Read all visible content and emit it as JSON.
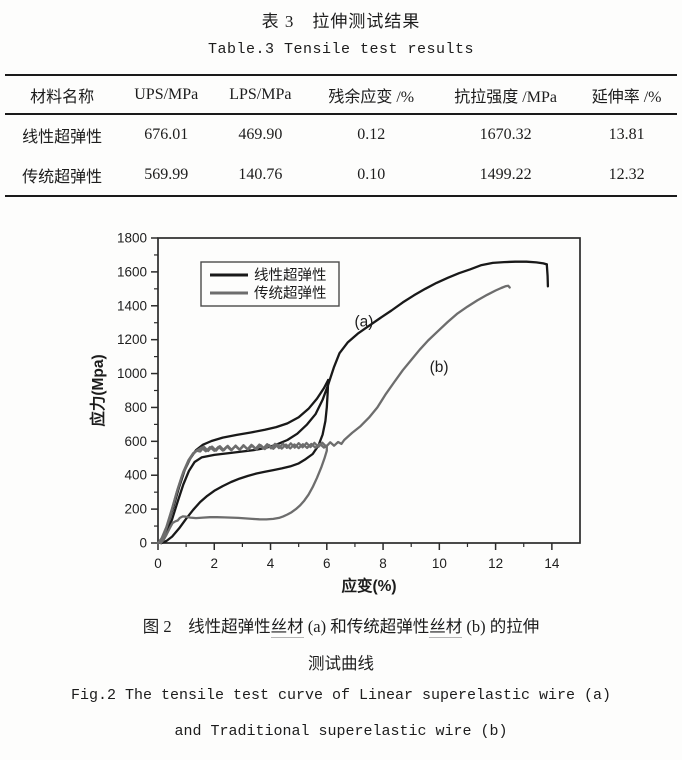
{
  "table_section": {
    "title_zh": "表 3　拉伸测试结果",
    "title_en": "Table.3  Tensile test results",
    "columns": [
      "材料名称",
      "UPS/MPa",
      "LPS/MPa",
      "残余应变 /%",
      "抗拉强度 /MPa",
      "延伸率 /%"
    ],
    "rows": [
      [
        "线性超弹性",
        "676.01",
        "469.90",
        "0.12",
        "1670.32",
        "13.81"
      ],
      [
        "传统超弹性",
        "569.99",
        "140.76",
        "0.10",
        "1499.22",
        "12.32"
      ]
    ]
  },
  "chart_data": {
    "type": "line",
    "title": "",
    "xlabel": "应变(%)",
    "ylabel": "应力(Mpa)",
    "xlim": [
      0,
      15
    ],
    "ylim": [
      0,
      1800
    ],
    "x_ticks": [
      0,
      2,
      4,
      6,
      8,
      10,
      12,
      14
    ],
    "y_ticks": [
      0,
      200,
      400,
      600,
      800,
      1000,
      1200,
      1400,
      1600,
      1800
    ],
    "x_minor": [
      1,
      3,
      5,
      7,
      9,
      11,
      13
    ],
    "y_minor": [
      100,
      300,
      500,
      700,
      900,
      1100,
      1300,
      1500,
      1700
    ],
    "grid": false,
    "legend_position": "upper-left",
    "axis_color": "#2b2b2b",
    "annotations": [
      {
        "text": "(a)",
        "x": 7.32,
        "y": 1307
      },
      {
        "text": "(b)",
        "x": 9.99,
        "y": 1040
      }
    ],
    "series": [
      {
        "name": "线性超弹性",
        "color": "#191919",
        "width": 2.3,
        "segments": [
          [
            [
              0,
              0
            ],
            [
              0.15,
              30
            ],
            [
              0.35,
              110
            ],
            [
              0.55,
              215
            ],
            [
              0.75,
              330
            ],
            [
              0.95,
              430
            ],
            [
              1.15,
              500
            ],
            [
              1.35,
              548
            ],
            [
              1.6,
              580
            ],
            [
              1.9,
              602
            ],
            [
              2.3,
              622
            ],
            [
              2.8,
              638
            ],
            [
              3.3,
              652
            ],
            [
              3.8,
              668
            ],
            [
              4.2,
              684
            ],
            [
              4.6,
              706
            ],
            [
              5.0,
              742
            ],
            [
              5.35,
              792
            ],
            [
              5.65,
              852
            ],
            [
              5.9,
              915
            ],
            [
              6.05,
              962
            ]
          ],
          [
            [
              6.05,
              962
            ],
            [
              6.03,
              880
            ],
            [
              6.0,
              800
            ],
            [
              5.95,
              720
            ],
            [
              5.85,
              640
            ],
            [
              5.7,
              575
            ],
            [
              5.5,
              525
            ],
            [
              5.25,
              495
            ],
            [
              5.0,
              470
            ],
            [
              4.7,
              452
            ],
            [
              4.4,
              440
            ],
            [
              4.1,
              430
            ],
            [
              3.8,
              420
            ],
            [
              3.5,
              410
            ],
            [
              3.2,
              396
            ],
            [
              2.9,
              380
            ],
            [
              2.6,
              360
            ],
            [
              2.3,
              336
            ],
            [
              2.0,
              308
            ],
            [
              1.75,
              278
            ],
            [
              1.5,
              242
            ],
            [
              1.25,
              196
            ],
            [
              1.0,
              143
            ],
            [
              0.75,
              86
            ],
            [
              0.5,
              38
            ],
            [
              0.3,
              12
            ],
            [
              0.12,
              0
            ]
          ],
          [
            [
              0.12,
              0
            ],
            [
              0.3,
              55
            ],
            [
              0.5,
              140
            ],
            [
              0.7,
              245
            ],
            [
              0.9,
              345
            ],
            [
              1.1,
              425
            ],
            [
              1.3,
              478
            ],
            [
              1.55,
              505
            ],
            [
              2.0,
              520
            ],
            [
              2.6,
              532
            ],
            [
              3.0,
              540
            ],
            [
              3.4,
              548
            ],
            [
              3.8,
              560
            ],
            [
              4.2,
              580
            ],
            [
              4.6,
              608
            ],
            [
              4.95,
              645
            ],
            [
              5.3,
              700
            ],
            [
              5.6,
              760
            ],
            [
              5.85,
              845
            ],
            [
              6.05,
              935
            ],
            [
              6.25,
              1035
            ],
            [
              6.45,
              1120
            ],
            [
              6.75,
              1185
            ],
            [
              7.1,
              1235
            ],
            [
              7.5,
              1282
            ],
            [
              7.9,
              1328
            ],
            [
              8.3,
              1372
            ],
            [
              8.7,
              1420
            ],
            [
              9.1,
              1462
            ],
            [
              9.5,
              1500
            ],
            [
              9.9,
              1535
            ],
            [
              10.3,
              1565
            ],
            [
              10.7,
              1592
            ],
            [
              11.1,
              1615
            ],
            [
              11.5,
              1640
            ],
            [
              11.9,
              1653
            ],
            [
              12.3,
              1658
            ],
            [
              12.7,
              1660
            ],
            [
              13.1,
              1660
            ],
            [
              13.45,
              1656
            ],
            [
              13.7,
              1650
            ],
            [
              13.82,
              1644
            ]
          ],
          [
            [
              13.82,
              1644
            ],
            [
              13.85,
              1575
            ],
            [
              13.86,
              1515
            ]
          ]
        ]
      },
      {
        "name": "传统超弹性",
        "color": "#6d6d6d",
        "width": 2.3,
        "segments": [
          [
            [
              0,
              0
            ],
            [
              0.12,
              25
            ],
            [
              0.3,
              95
            ],
            [
              0.5,
              205
            ],
            [
              0.7,
              320
            ],
            [
              0.9,
              420
            ],
            [
              1.08,
              488
            ],
            [
              1.25,
              530
            ],
            [
              1.4,
              548
            ],
            [
              1.55,
              563
            ],
            [
              1.7,
              541
            ],
            [
              1.85,
              566
            ],
            [
              2.0,
              544
            ],
            [
              2.15,
              568
            ],
            [
              2.3,
              546
            ],
            [
              2.45,
              570
            ],
            [
              2.6,
              548
            ],
            [
              2.75,
              572
            ],
            [
              2.9,
              550
            ],
            [
              3.05,
              574
            ],
            [
              3.2,
              551
            ],
            [
              3.35,
              576
            ],
            [
              3.5,
              553
            ],
            [
              3.65,
              577
            ],
            [
              3.8,
              554
            ],
            [
              3.95,
              578
            ],
            [
              4.1,
              556
            ],
            [
              4.25,
              580
            ],
            [
              4.4,
              557
            ],
            [
              4.55,
              581
            ],
            [
              4.7,
              558
            ],
            [
              4.85,
              582
            ],
            [
              5.0,
              560
            ],
            [
              5.15,
              583
            ],
            [
              5.3,
              561
            ],
            [
              5.45,
              584
            ],
            [
              5.6,
              562
            ],
            [
              5.75,
              585
            ],
            [
              5.9,
              563
            ],
            [
              6.0,
              575
            ],
            [
              6.0,
              545
            ],
            [
              5.92,
              500
            ],
            [
              5.8,
              445
            ],
            [
              5.65,
              385
            ],
            [
              5.5,
              330
            ],
            [
              5.35,
              285
            ],
            [
              5.2,
              250
            ],
            [
              5.05,
              222
            ],
            [
              4.9,
              200
            ],
            [
              4.75,
              182
            ],
            [
              4.6,
              168
            ],
            [
              4.45,
              157
            ],
            [
              4.3,
              148
            ],
            [
              4.1,
              142
            ],
            [
              3.85,
              139
            ],
            [
              3.6,
              140
            ],
            [
              3.35,
              142
            ],
            [
              3.1,
              145
            ],
            [
              2.85,
              148
            ],
            [
              2.6,
              150
            ],
            [
              2.35,
              151
            ],
            [
              2.1,
              152
            ],
            [
              1.85,
              152
            ],
            [
              1.6,
              150
            ],
            [
              1.35,
              147
            ],
            [
              1.15,
              150
            ],
            [
              1.0,
              155
            ],
            [
              0.88,
              157
            ],
            [
              0.78,
              148
            ],
            [
              0.7,
              133
            ],
            [
              0.62,
              128
            ],
            [
              0.52,
              118
            ],
            [
              0.42,
              88
            ],
            [
              0.3,
              48
            ],
            [
              0.2,
              18
            ],
            [
              0.1,
              0
            ]
          ],
          [
            [
              0.1,
              0
            ],
            [
              0.25,
              60
            ],
            [
              0.45,
              170
            ],
            [
              0.65,
              290
            ],
            [
              0.85,
              395
            ],
            [
              1.05,
              470
            ],
            [
              1.22,
              520
            ],
            [
              1.38,
              545
            ],
            [
              1.5,
              540
            ],
            [
              1.64,
              567
            ],
            [
              1.78,
              543
            ],
            [
              1.92,
              569
            ],
            [
              2.06,
              545
            ],
            [
              2.2,
              571
            ],
            [
              2.34,
              547
            ],
            [
              2.48,
              573
            ],
            [
              2.62,
              549
            ],
            [
              2.76,
              575
            ],
            [
              2.9,
              551
            ],
            [
              3.04,
              577
            ],
            [
              3.18,
              553
            ],
            [
              3.32,
              579
            ],
            [
              3.46,
              555
            ],
            [
              3.6,
              581
            ],
            [
              3.74,
              557
            ],
            [
              3.88,
              583
            ],
            [
              4.02,
              559
            ],
            [
              4.16,
              585
            ],
            [
              4.3,
              560
            ],
            [
              4.44,
              586
            ],
            [
              4.58,
              562
            ],
            [
              4.72,
              588
            ],
            [
              4.86,
              563
            ],
            [
              5.0,
              589
            ],
            [
              5.14,
              565
            ],
            [
              5.28,
              590
            ],
            [
              5.42,
              566
            ],
            [
              5.56,
              591
            ],
            [
              5.7,
              568
            ],
            [
              5.84,
              592
            ],
            [
              5.98,
              569
            ],
            [
              6.12,
              594
            ],
            [
              6.26,
              574
            ],
            [
              6.4,
              596
            ],
            [
              6.52,
              585
            ],
            [
              6.62,
              608
            ],
            [
              6.9,
              650
            ],
            [
              7.2,
              690
            ],
            [
              7.5,
              740
            ],
            [
              7.8,
              800
            ],
            [
              8.1,
              880
            ],
            [
              8.4,
              950
            ],
            [
              8.7,
              1020
            ],
            [
              9.0,
              1080
            ],
            [
              9.3,
              1140
            ],
            [
              9.6,
              1195
            ],
            [
              9.95,
              1250
            ],
            [
              10.3,
              1305
            ],
            [
              10.65,
              1355
            ],
            [
              11.0,
              1395
            ],
            [
              11.35,
              1432
            ],
            [
              11.7,
              1465
            ],
            [
              12.0,
              1490
            ],
            [
              12.2,
              1505
            ],
            [
              12.35,
              1515
            ],
            [
              12.45,
              1518
            ],
            [
              12.5,
              1508
            ]
          ]
        ]
      }
    ],
    "legend": [
      {
        "label": "线性超弹性",
        "color": "#191919"
      },
      {
        "label": "传统超弹性",
        "color": "#6d6d6d"
      }
    ]
  },
  "caption": {
    "line1": {
      "p1": "图 2　线性超弹性",
      "u1": "丝材",
      "p2": " (a) 和传统超弹性",
      "u2": "丝材",
      "p3": " (b) 的拉伸"
    },
    "line2": "测试曲线",
    "line3": "Fig.2  The tensile test curve of Linear superelastic wire (a)",
    "line4": "and Traditional superelastic wire (b)"
  }
}
